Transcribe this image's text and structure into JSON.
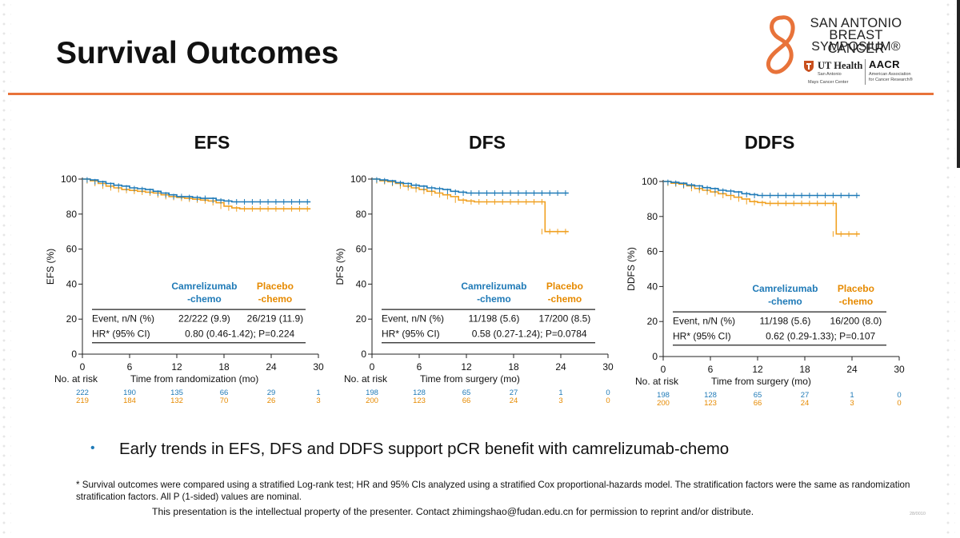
{
  "slide": {
    "title": "Survival Outcomes",
    "bullet": "Early trends in EFS, DFS and DDFS support pCR benefit with camrelizumab-chemo",
    "footnote": "* Survival outcomes were compared using a stratified Log-rank test; HR and 95% CIs analyzed using a stratified Cox proportional-hazards model. The stratification factors were the same as randomization stratification factors. All P (1-sided) values are nominal.",
    "ip_notice": "This presentation is the intellectual property of the presenter. Contact zhimingshao@fudan.edu.cn for permission to reprint and/or distribute.",
    "slide_code": "28/0010"
  },
  "logo": {
    "line1": "SAN ANTONIO",
    "line2": "BREAST CANCER",
    "line3": "SYMPOSIUM®",
    "ut_name": "UT Health",
    "ut_sub1": "San Antonio",
    "ut_sub2": "Mays Cancer Center",
    "aacr_name": "AACR",
    "aacr_sub1": "American Association",
    "aacr_sub2": "for Cancer Research®",
    "eight_color": "#e8733a",
    "ut_color": "#c8501e"
  },
  "colors": {
    "camrelizumab": "#1f7ab7",
    "placebo": "#f0a020",
    "rule": "#e8733a",
    "text": "#111111"
  },
  "chart_data": [
    {
      "type": "line",
      "title": "EFS",
      "ylabel": "EFS (%)",
      "xlabel": "Time from randomization (mo)",
      "xlim": [
        0,
        30
      ],
      "ylim": [
        0,
        100
      ],
      "xticks": [
        0,
        6,
        12,
        18,
        24,
        30
      ],
      "yticks": [
        0,
        20,
        40,
        60,
        80,
        100
      ],
      "legend": [
        "Camrelizumab\n-chemo",
        "Placebo\n-chemo"
      ],
      "stats_rows": [
        {
          "label": "Event, n/N (%)",
          "camrelizumab": "22/222 (9.9)",
          "placebo": "26/219 (11.9)"
        },
        {
          "label": "HR* (95% CI)",
          "value": "0.80 (0.46-1.42); P=0.224"
        }
      ],
      "series": [
        {
          "name": "Camrelizumab-chemo",
          "x": [
            0,
            1,
            2,
            3,
            4,
            5,
            6,
            7,
            8,
            9,
            10,
            11,
            12,
            13,
            14,
            15,
            16,
            17,
            18,
            19,
            20,
            21,
            22,
            23,
            24,
            25,
            26,
            27,
            28,
            29
          ],
          "y": [
            100,
            99.5,
            98.5,
            97.5,
            96.5,
            96,
            95,
            94.5,
            94,
            93,
            92,
            91,
            90,
            90,
            89.5,
            89,
            89,
            88,
            87.5,
            87,
            87,
            87,
            87,
            87,
            87,
            87,
            87,
            87,
            87,
            87
          ]
        },
        {
          "name": "Placebo-chemo",
          "x": [
            0,
            1,
            2,
            3,
            4,
            5,
            6,
            7,
            8,
            9,
            10,
            11,
            12,
            13,
            14,
            15,
            16,
            17,
            18,
            19,
            20,
            21,
            22,
            23,
            24,
            25,
            26,
            27,
            28,
            29
          ],
          "y": [
            100,
            99,
            97.5,
            96,
            95,
            94,
            93.5,
            93,
            92.5,
            92,
            91,
            90,
            89.5,
            89,
            88.5,
            88,
            87.5,
            86.5,
            84.5,
            83.5,
            83,
            83,
            83,
            83,
            83,
            83,
            83,
            83,
            83,
            83
          ]
        }
      ],
      "risk_table": {
        "label": "No. at risk",
        "camrelizumab": [
          "222",
          "190",
          "135",
          "66",
          "29",
          "1"
        ],
        "placebo": [
          "219",
          "184",
          "132",
          "70",
          "26",
          "3"
        ]
      }
    },
    {
      "type": "line",
      "title": "DFS",
      "ylabel": "DFS (%)",
      "xlabel": "Time from surgery (mo)",
      "xlim": [
        0,
        30
      ],
      "ylim": [
        0,
        100
      ],
      "xticks": [
        0,
        6,
        12,
        18,
        24,
        30
      ],
      "yticks": [
        0,
        20,
        40,
        60,
        80,
        100
      ],
      "legend": [
        "Camrelizumab\n-chemo",
        "Placebo\n-chemo"
      ],
      "stats_rows": [
        {
          "label": "Event, n/N (%)",
          "camrelizumab": "11/198 (5.6)",
          "placebo": "17/200 (8.5)"
        },
        {
          "label": "HR* (95% CI)",
          "value": "0.58 (0.27-1.24); P=0.0784"
        }
      ],
      "series": [
        {
          "name": "Camrelizumab-chemo",
          "x": [
            0,
            1,
            2,
            3,
            4,
            5,
            6,
            7,
            8,
            9,
            10,
            11,
            12,
            13,
            14,
            15,
            16,
            17,
            18,
            19,
            20,
            21,
            22,
            23,
            24,
            25
          ],
          "y": [
            100,
            99.5,
            99,
            98,
            97.5,
            96.5,
            96,
            95,
            94.5,
            94,
            93,
            92.5,
            92,
            92,
            92,
            92,
            92,
            92,
            92,
            92,
            92,
            92,
            92,
            92,
            92,
            92
          ]
        },
        {
          "name": "Placebo-chemo",
          "x": [
            0,
            1,
            2,
            3,
            4,
            5,
            6,
            7,
            8,
            9,
            10,
            11,
            12,
            13,
            14,
            15,
            16,
            17,
            18,
            19,
            20,
            21,
            22,
            22,
            23,
            24,
            25
          ],
          "y": [
            100,
            99,
            98.5,
            97.5,
            96,
            95,
            94,
            93,
            92,
            91,
            90,
            88,
            87.5,
            87,
            87,
            87,
            87,
            87,
            87,
            87,
            87,
            87,
            87,
            70,
            70,
            70,
            70
          ]
        }
      ],
      "risk_table": {
        "label": "No. at risk",
        "camrelizumab": [
          "198",
          "128",
          "65",
          "27",
          "1",
          "0"
        ],
        "placebo": [
          "200",
          "123",
          "66",
          "24",
          "3",
          "0"
        ]
      }
    },
    {
      "type": "line",
      "title": "DDFS",
      "ylabel": "DDFS (%)",
      "xlabel": "Time from surgery (mo)",
      "xlim": [
        0,
        30
      ],
      "ylim": [
        0,
        100
      ],
      "xticks": [
        0,
        6,
        12,
        18,
        24,
        30
      ],
      "yticks": [
        0,
        20,
        40,
        60,
        80,
        100
      ],
      "legend": [
        "Camrelizumab\n-chemo",
        "Placebo\n-chemo"
      ],
      "stats_rows": [
        {
          "label": "Event, n/N (%)",
          "camrelizumab": "11/198 (5.6)",
          "placebo": "16/200 (8.0)"
        },
        {
          "label": "HR* (95% CI)",
          "value": "0.62 (0.29-1.33); P=0.107"
        }
      ],
      "series": [
        {
          "name": "Camrelizumab-chemo",
          "x": [
            0,
            1,
            2,
            3,
            4,
            5,
            6,
            7,
            8,
            9,
            10,
            11,
            12,
            13,
            14,
            15,
            16,
            17,
            18,
            19,
            20,
            21,
            22,
            23,
            24,
            25
          ],
          "y": [
            100,
            99.5,
            99,
            98,
            97.5,
            96.5,
            96,
            95,
            94.5,
            94,
            93,
            92.5,
            92,
            92,
            92,
            92,
            92,
            92,
            92,
            92,
            92,
            92,
            92,
            92,
            92,
            92
          ]
        },
        {
          "name": "Placebo-chemo",
          "x": [
            0,
            1,
            2,
            3,
            4,
            5,
            6,
            7,
            8,
            9,
            10,
            11,
            12,
            13,
            14,
            15,
            16,
            17,
            18,
            19,
            20,
            21,
            22,
            22,
            23,
            24,
            25
          ],
          "y": [
            100,
            99,
            98.5,
            97.5,
            96,
            95,
            94,
            93,
            92,
            91,
            90,
            88.5,
            88,
            87.5,
            87.5,
            87.5,
            87.5,
            87.5,
            87.5,
            87.5,
            87.5,
            87.5,
            87.5,
            70,
            70,
            70,
            70
          ]
        }
      ],
      "risk_table": {
        "label": "No. at risk",
        "camrelizumab": [
          "198",
          "128",
          "65",
          "27",
          "1",
          "0"
        ],
        "placebo": [
          "200",
          "123",
          "66",
          "24",
          "3",
          "0"
        ]
      }
    }
  ]
}
